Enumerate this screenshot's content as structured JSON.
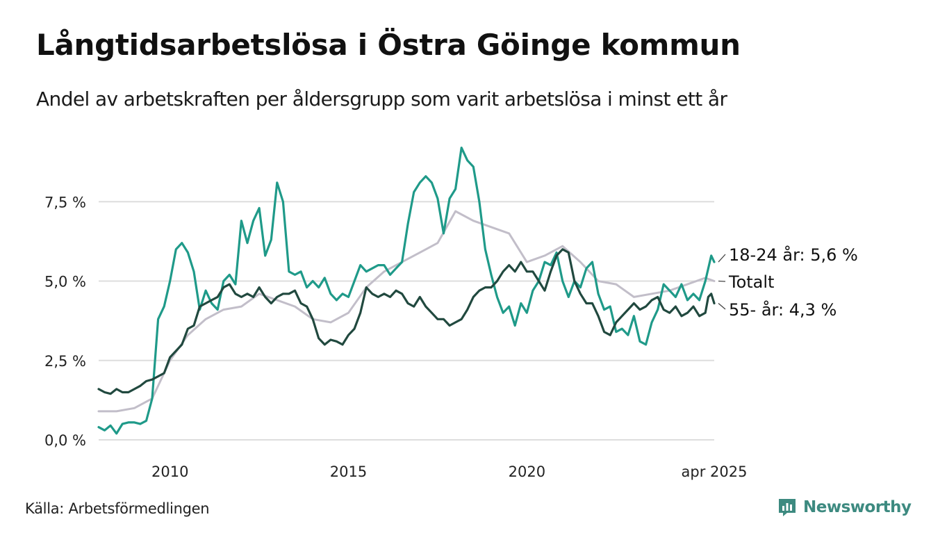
{
  "title": "Långtidsarbetslösa i Östra Göinge kommun",
  "subtitle": "Andel av arbetskraften per åldersgrupp som varit arbetslösa i minst ett år",
  "source": "Källa: Arbetsförmedlingen",
  "brand": "Newsworthy",
  "colors": {
    "young": "#1f9a89",
    "total": "#c2bec9",
    "old": "#21493f",
    "grid": "#dddddd",
    "brand": "#3d8a80"
  },
  "chart_data": {
    "type": "line",
    "x_range": [
      "2008-01",
      "2025-04"
    ],
    "ylim": [
      0,
      10
    ],
    "y_ticks": [
      0,
      2.5,
      5,
      7.5
    ],
    "y_tick_labels": [
      "0,0 %",
      "2,5 %",
      "5,0 %",
      "7,5 %"
    ],
    "x_ticks": [
      "2010-01",
      "2015-01",
      "2020-01",
      "2025-04"
    ],
    "x_tick_labels": [
      "2010",
      "2015",
      "2020",
      "apr 2025"
    ],
    "grid": true,
    "series": [
      {
        "key": "total",
        "name": "Totalt",
        "end_label": "Totalt",
        "points": [
          [
            "2008-01",
            0.9
          ],
          [
            "2008-07",
            0.9
          ],
          [
            "2009-01",
            1.0
          ],
          [
            "2009-07",
            1.3
          ],
          [
            "2010-01",
            2.5
          ],
          [
            "2010-07",
            3.3
          ],
          [
            "2011-01",
            3.8
          ],
          [
            "2011-07",
            4.1
          ],
          [
            "2012-01",
            4.2
          ],
          [
            "2012-07",
            4.6
          ],
          [
            "2013-01",
            4.4
          ],
          [
            "2013-07",
            4.2
          ],
          [
            "2014-01",
            3.8
          ],
          [
            "2014-07",
            3.7
          ],
          [
            "2015-01",
            4.0
          ],
          [
            "2015-07",
            4.8
          ],
          [
            "2016-01",
            5.3
          ],
          [
            "2016-07",
            5.6
          ],
          [
            "2017-01",
            5.9
          ],
          [
            "2017-07",
            6.2
          ],
          [
            "2018-01",
            7.2
          ],
          [
            "2018-07",
            6.9
          ],
          [
            "2019-01",
            6.7
          ],
          [
            "2019-07",
            6.5
          ],
          [
            "2020-01",
            5.6
          ],
          [
            "2020-07",
            5.8
          ],
          [
            "2021-01",
            6.1
          ],
          [
            "2021-07",
            5.6
          ],
          [
            "2022-01",
            5.0
          ],
          [
            "2022-07",
            4.9
          ],
          [
            "2023-01",
            4.5
          ],
          [
            "2023-07",
            4.6
          ],
          [
            "2024-01",
            4.7
          ],
          [
            "2024-07",
            4.9
          ],
          [
            "2025-01",
            5.1
          ],
          [
            "2025-04",
            5.0
          ]
        ]
      },
      {
        "key": "young",
        "name": "18-24 år",
        "end_label": "18-24 år: 5,6 %",
        "points": [
          [
            "2008-01",
            0.4
          ],
          [
            "2008-03",
            0.3
          ],
          [
            "2008-05",
            0.45
          ],
          [
            "2008-07",
            0.2
          ],
          [
            "2008-09",
            0.5
          ],
          [
            "2008-11",
            0.55
          ],
          [
            "2009-01",
            0.55
          ],
          [
            "2009-03",
            0.5
          ],
          [
            "2009-05",
            0.6
          ],
          [
            "2009-07",
            1.3
          ],
          [
            "2009-09",
            3.8
          ],
          [
            "2009-11",
            4.2
          ],
          [
            "2010-01",
            5.0
          ],
          [
            "2010-03",
            6.0
          ],
          [
            "2010-05",
            6.2
          ],
          [
            "2010-07",
            5.9
          ],
          [
            "2010-09",
            5.3
          ],
          [
            "2010-11",
            4.1
          ],
          [
            "2011-01",
            4.7
          ],
          [
            "2011-03",
            4.3
          ],
          [
            "2011-05",
            4.1
          ],
          [
            "2011-07",
            5.0
          ],
          [
            "2011-09",
            5.2
          ],
          [
            "2011-11",
            4.9
          ],
          [
            "2012-01",
            6.9
          ],
          [
            "2012-03",
            6.2
          ],
          [
            "2012-05",
            6.9
          ],
          [
            "2012-07",
            7.3
          ],
          [
            "2012-09",
            5.8
          ],
          [
            "2012-11",
            6.3
          ],
          [
            "2013-01",
            8.1
          ],
          [
            "2013-03",
            7.5
          ],
          [
            "2013-05",
            5.3
          ],
          [
            "2013-07",
            5.2
          ],
          [
            "2013-09",
            5.3
          ],
          [
            "2013-11",
            4.8
          ],
          [
            "2014-01",
            5.0
          ],
          [
            "2014-03",
            4.8
          ],
          [
            "2014-05",
            5.1
          ],
          [
            "2014-07",
            4.6
          ],
          [
            "2014-09",
            4.4
          ],
          [
            "2014-11",
            4.6
          ],
          [
            "2015-01",
            4.5
          ],
          [
            "2015-03",
            5.0
          ],
          [
            "2015-05",
            5.5
          ],
          [
            "2015-07",
            5.3
          ],
          [
            "2015-09",
            5.4
          ],
          [
            "2015-11",
            5.5
          ],
          [
            "2016-01",
            5.5
          ],
          [
            "2016-03",
            5.2
          ],
          [
            "2016-05",
            5.4
          ],
          [
            "2016-07",
            5.6
          ],
          [
            "2016-09",
            6.8
          ],
          [
            "2016-11",
            7.8
          ],
          [
            "2017-01",
            8.1
          ],
          [
            "2017-03",
            8.3
          ],
          [
            "2017-05",
            8.1
          ],
          [
            "2017-07",
            7.6
          ],
          [
            "2017-09",
            6.5
          ],
          [
            "2017-11",
            7.6
          ],
          [
            "2018-01",
            7.9
          ],
          [
            "2018-03",
            9.2
          ],
          [
            "2018-05",
            8.8
          ],
          [
            "2018-07",
            8.6
          ],
          [
            "2018-09",
            7.5
          ],
          [
            "2018-11",
            6.0
          ],
          [
            "2019-01",
            5.2
          ],
          [
            "2019-03",
            4.5
          ],
          [
            "2019-05",
            4.0
          ],
          [
            "2019-07",
            4.2
          ],
          [
            "2019-09",
            3.6
          ],
          [
            "2019-11",
            4.3
          ],
          [
            "2020-01",
            4.0
          ],
          [
            "2020-03",
            4.7
          ],
          [
            "2020-05",
            5.0
          ],
          [
            "2020-07",
            5.6
          ],
          [
            "2020-09",
            5.5
          ],
          [
            "2020-11",
            5.9
          ],
          [
            "2021-01",
            5.0
          ],
          [
            "2021-03",
            4.5
          ],
          [
            "2021-05",
            5.0
          ],
          [
            "2021-07",
            4.8
          ],
          [
            "2021-09",
            5.4
          ],
          [
            "2021-11",
            5.6
          ],
          [
            "2022-01",
            4.6
          ],
          [
            "2022-03",
            4.1
          ],
          [
            "2022-05",
            4.2
          ],
          [
            "2022-07",
            3.4
          ],
          [
            "2022-09",
            3.5
          ],
          [
            "2022-11",
            3.3
          ],
          [
            "2023-01",
            3.9
          ],
          [
            "2023-03",
            3.1
          ],
          [
            "2023-05",
            3.0
          ],
          [
            "2023-07",
            3.7
          ],
          [
            "2023-09",
            4.1
          ],
          [
            "2023-11",
            4.9
          ],
          [
            "2024-01",
            4.7
          ],
          [
            "2024-03",
            4.5
          ],
          [
            "2024-05",
            4.9
          ],
          [
            "2024-07",
            4.4
          ],
          [
            "2024-09",
            4.6
          ],
          [
            "2024-11",
            4.4
          ],
          [
            "2025-01",
            5.0
          ],
          [
            "2025-03",
            5.8
          ],
          [
            "2025-04",
            5.6
          ]
        ]
      },
      {
        "key": "old",
        "name": "55- år",
        "end_label": "55- år: 4,3 %",
        "points": [
          [
            "2008-01",
            1.6
          ],
          [
            "2008-03",
            1.5
          ],
          [
            "2008-05",
            1.45
          ],
          [
            "2008-07",
            1.6
          ],
          [
            "2008-09",
            1.5
          ],
          [
            "2008-11",
            1.5
          ],
          [
            "2009-01",
            1.6
          ],
          [
            "2009-03",
            1.7
          ],
          [
            "2009-05",
            1.85
          ],
          [
            "2009-07",
            1.9
          ],
          [
            "2009-09",
            2.0
          ],
          [
            "2009-11",
            2.1
          ],
          [
            "2010-01",
            2.6
          ],
          [
            "2010-03",
            2.8
          ],
          [
            "2010-05",
            3.0
          ],
          [
            "2010-07",
            3.5
          ],
          [
            "2010-09",
            3.6
          ],
          [
            "2010-11",
            4.2
          ],
          [
            "2011-01",
            4.3
          ],
          [
            "2011-03",
            4.4
          ],
          [
            "2011-05",
            4.5
          ],
          [
            "2011-07",
            4.8
          ],
          [
            "2011-09",
            4.9
          ],
          [
            "2011-11",
            4.6
          ],
          [
            "2012-01",
            4.5
          ],
          [
            "2012-03",
            4.6
          ],
          [
            "2012-05",
            4.5
          ],
          [
            "2012-07",
            4.8
          ],
          [
            "2012-09",
            4.5
          ],
          [
            "2012-11",
            4.3
          ],
          [
            "2013-01",
            4.5
          ],
          [
            "2013-03",
            4.6
          ],
          [
            "2013-05",
            4.6
          ],
          [
            "2013-07",
            4.7
          ],
          [
            "2013-09",
            4.3
          ],
          [
            "2013-11",
            4.2
          ],
          [
            "2014-01",
            3.8
          ],
          [
            "2014-03",
            3.2
          ],
          [
            "2014-05",
            3.0
          ],
          [
            "2014-07",
            3.15
          ],
          [
            "2014-09",
            3.1
          ],
          [
            "2014-11",
            3.0
          ],
          [
            "2015-01",
            3.3
          ],
          [
            "2015-03",
            3.5
          ],
          [
            "2015-05",
            4.0
          ],
          [
            "2015-07",
            4.8
          ],
          [
            "2015-09",
            4.6
          ],
          [
            "2015-11",
            4.5
          ],
          [
            "2016-01",
            4.6
          ],
          [
            "2016-03",
            4.5
          ],
          [
            "2016-05",
            4.7
          ],
          [
            "2016-07",
            4.6
          ],
          [
            "2016-09",
            4.3
          ],
          [
            "2016-11",
            4.2
          ],
          [
            "2017-01",
            4.5
          ],
          [
            "2017-03",
            4.2
          ],
          [
            "2017-05",
            4.0
          ],
          [
            "2017-07",
            3.8
          ],
          [
            "2017-09",
            3.8
          ],
          [
            "2017-11",
            3.6
          ],
          [
            "2018-01",
            3.7
          ],
          [
            "2018-03",
            3.8
          ],
          [
            "2018-05",
            4.1
          ],
          [
            "2018-07",
            4.5
          ],
          [
            "2018-09",
            4.7
          ],
          [
            "2018-11",
            4.8
          ],
          [
            "2019-01",
            4.8
          ],
          [
            "2019-03",
            5.0
          ],
          [
            "2019-05",
            5.3
          ],
          [
            "2019-07",
            5.5
          ],
          [
            "2019-09",
            5.3
          ],
          [
            "2019-11",
            5.6
          ],
          [
            "2020-01",
            5.3
          ],
          [
            "2020-03",
            5.3
          ],
          [
            "2020-05",
            5.0
          ],
          [
            "2020-07",
            4.7
          ],
          [
            "2020-09",
            5.3
          ],
          [
            "2020-11",
            5.8
          ],
          [
            "2021-01",
            6.0
          ],
          [
            "2021-03",
            5.9
          ],
          [
            "2021-05",
            5.0
          ],
          [
            "2021-07",
            4.6
          ],
          [
            "2021-09",
            4.3
          ],
          [
            "2021-11",
            4.3
          ],
          [
            "2022-01",
            3.9
          ],
          [
            "2022-03",
            3.4
          ],
          [
            "2022-05",
            3.3
          ],
          [
            "2022-07",
            3.7
          ],
          [
            "2022-09",
            3.9
          ],
          [
            "2022-11",
            4.1
          ],
          [
            "2023-01",
            4.3
          ],
          [
            "2023-03",
            4.1
          ],
          [
            "2023-05",
            4.2
          ],
          [
            "2023-07",
            4.4
          ],
          [
            "2023-09",
            4.5
          ],
          [
            "2023-11",
            4.1
          ],
          [
            "2024-01",
            4.0
          ],
          [
            "2024-03",
            4.2
          ],
          [
            "2024-05",
            3.9
          ],
          [
            "2024-07",
            4.0
          ],
          [
            "2024-09",
            4.2
          ],
          [
            "2024-11",
            3.9
          ],
          [
            "2025-01",
            4.0
          ],
          [
            "2025-02",
            4.5
          ],
          [
            "2025-03",
            4.6
          ],
          [
            "2025-04",
            4.3
          ]
        ]
      }
    ]
  }
}
